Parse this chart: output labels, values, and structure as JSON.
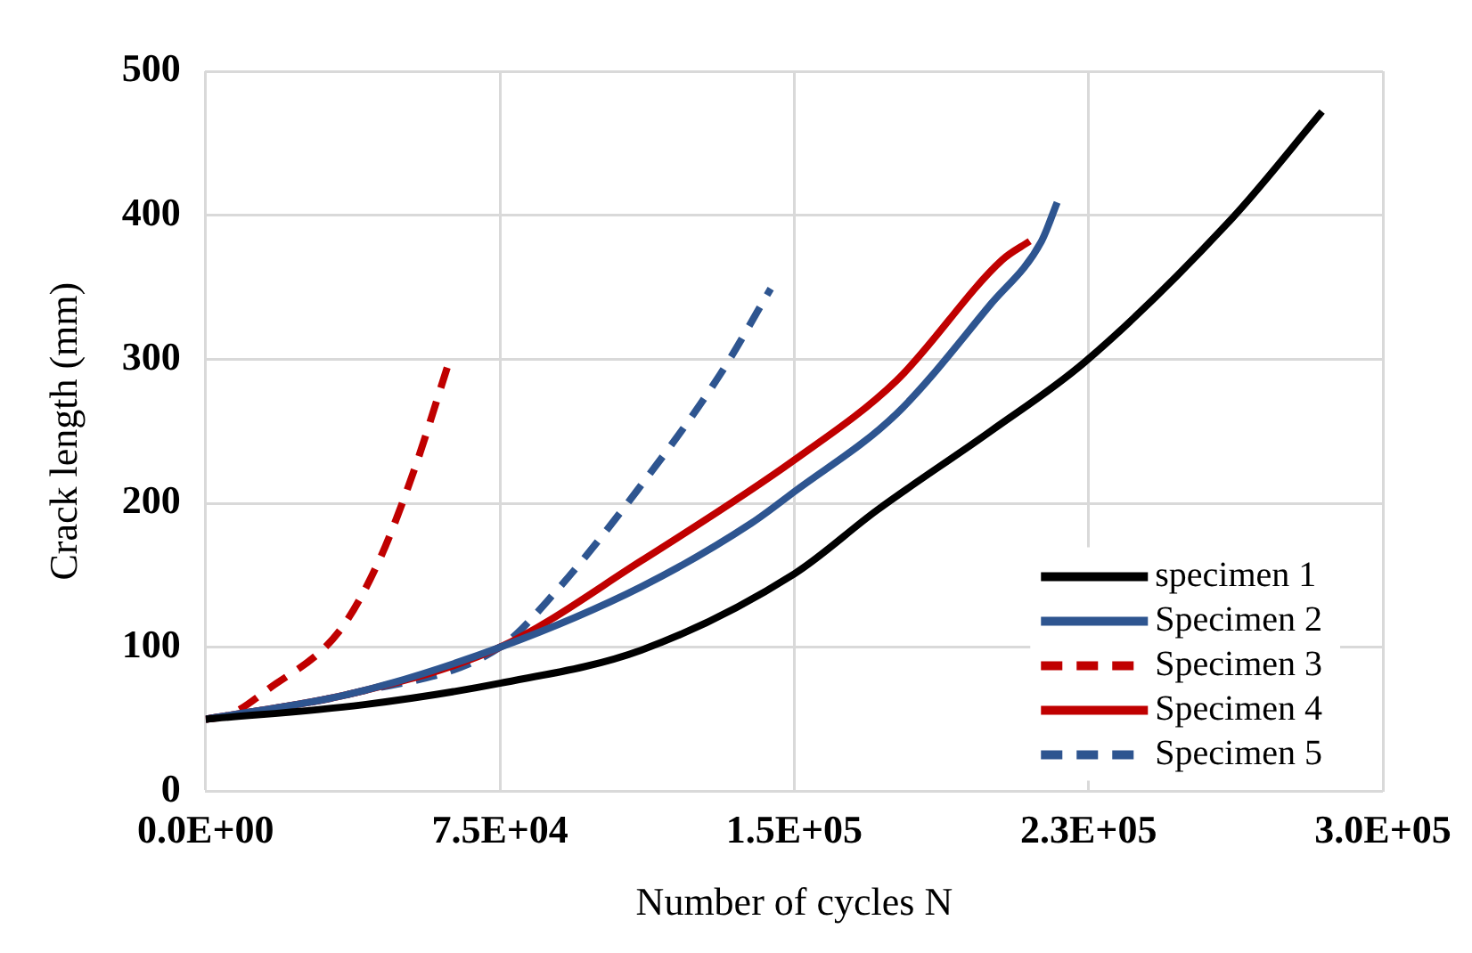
{
  "chart_data": {
    "type": "line",
    "xlabel": "Number of cycles N",
    "ylabel": "Crack length (mm)",
    "xlim": [
      0,
      300000
    ],
    "xticks": [
      {
        "value": 0,
        "label": "0.0E+00"
      },
      {
        "value": 75000,
        "label": "7.5E+04"
      },
      {
        "value": 150000,
        "label": "1.5E+05"
      },
      {
        "value": 225000,
        "label": "2.3E+05"
      },
      {
        "value": 300000,
        "label": "3.0E+05"
      }
    ],
    "ylim": [
      0,
      500
    ],
    "yticks": [
      0,
      100,
      200,
      300,
      400,
      500
    ],
    "grid": true,
    "legend": "bottom right",
    "marker": "none",
    "series": [
      {
        "name": "specimen 1",
        "color": "#000000",
        "line_style": "solid",
        "x": [
          0,
          40000,
          75000,
          111000,
          150000,
          171000,
          200000,
          224000,
          261600,
          284500
        ],
        "values": [
          50,
          60,
          75,
          98,
          151,
          195,
          250,
          298,
          398,
          472
        ]
      },
      {
        "name": "Specimen 2",
        "color": "#2e5590",
        "line_style": "solid",
        "x": [
          0,
          37500,
          75000,
          111000,
          139000,
          150000,
          176000,
          200000,
          213000,
          217000
        ],
        "values": [
          50,
          68,
          100,
          142,
          186,
          208,
          262,
          338,
          382,
          409
        ]
      },
      {
        "name": "Specimen 3",
        "color": "#c00000",
        "line_style": "dashed",
        "x": [
          0,
          6000,
          16000,
          34000,
          44000,
          53000,
          62000
        ],
        "values": [
          50,
          53,
          71,
          111,
          159,
          222,
          298
        ]
      },
      {
        "name": "Specimen 4",
        "color": "#c00000",
        "line_style": "solid",
        "x": [
          0,
          37500,
          75000,
          111000,
          150000,
          176000,
          203000,
          210000
        ],
        "values": [
          50,
          68,
          100,
          160,
          230,
          285,
          369,
          382
        ]
      },
      {
        "name": "Specimen 5",
        "color": "#2e5590",
        "line_style": "dashed",
        "x": [
          0,
          37500,
          75000,
          89000,
          110000,
          131000,
          144000
        ],
        "values": [
          50,
          68,
          100,
          138,
          209,
          289,
          349
        ]
      }
    ]
  }
}
